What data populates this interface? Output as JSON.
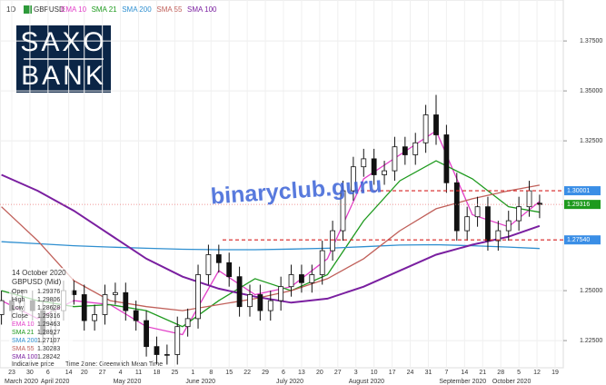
{
  "logo": [
    "SAXO",
    "BANK"
  ],
  "watermark": "binaryclub.guru",
  "header": {
    "interval": "1D",
    "symbol": "GBPUSD"
  },
  "footer": [
    "Indicative price",
    "Time Zone: Greenwich Mean Time"
  ],
  "chart_data": {
    "type": "candlestick",
    "candles": {
      "x": [
        "2020-03-19",
        "2020-03-23",
        "2020-03-27",
        "2020-03-31",
        "2020-04-04",
        "2020-04-08",
        "2020-04-12",
        "2020-04-16",
        "2020-04-20",
        "2020-04-24",
        "2020-04-28",
        "2020-05-02",
        "2020-05-06",
        "2020-05-10",
        "2020-05-14",
        "2020-05-18",
        "2020-05-22",
        "2020-05-26",
        "2020-05-30",
        "2020-06-03",
        "2020-06-07",
        "2020-06-11",
        "2020-06-15",
        "2020-06-19",
        "2020-06-23",
        "2020-06-27",
        "2020-07-01",
        "2020-07-05",
        "2020-07-09",
        "2020-07-13",
        "2020-07-17",
        "2020-07-21",
        "2020-07-25",
        "2020-07-29",
        "2020-08-02",
        "2020-08-06",
        "2020-08-10",
        "2020-08-14",
        "2020-08-18",
        "2020-08-22",
        "2020-08-26",
        "2020-08-30",
        "2020-09-03",
        "2020-09-07",
        "2020-09-11",
        "2020-09-15",
        "2020-09-19",
        "2020-09-23",
        "2020-09-27",
        "2020-10-01",
        "2020-10-05",
        "2020-10-09",
        "2020-10-13"
      ],
      "open": [
        1.238,
        1.245,
        1.24,
        1.245,
        1.24,
        1.228,
        1.24,
        1.25,
        1.248,
        1.235,
        1.238,
        1.248,
        1.249,
        1.24,
        1.235,
        1.222,
        1.218,
        1.218,
        1.232,
        1.236,
        1.258,
        1.268,
        1.264,
        1.257,
        1.242,
        1.248,
        1.24,
        1.245,
        1.252,
        1.258,
        1.254,
        1.258,
        1.27,
        1.28,
        1.3,
        1.312,
        1.316,
        1.308,
        1.31,
        1.322,
        1.318,
        1.324,
        1.338,
        1.328,
        1.304,
        1.28,
        1.287,
        1.292,
        1.275,
        1.28,
        1.285,
        1.292,
        1.29376
      ],
      "high": [
        1.25,
        1.25,
        1.25,
        1.25,
        1.245,
        1.245,
        1.255,
        1.255,
        1.253,
        1.243,
        1.253,
        1.254,
        1.254,
        1.245,
        1.24,
        1.227,
        1.223,
        1.237,
        1.241,
        1.263,
        1.273,
        1.273,
        1.269,
        1.262,
        1.253,
        1.253,
        1.25,
        1.257,
        1.263,
        1.263,
        1.263,
        1.275,
        1.285,
        1.305,
        1.317,
        1.321,
        1.321,
        1.315,
        1.327,
        1.327,
        1.329,
        1.343,
        1.348,
        1.333,
        1.309,
        1.292,
        1.297,
        1.297,
        1.285,
        1.29,
        1.297,
        1.305,
        1.29806
      ],
      "low": [
        1.233,
        1.235,
        1.235,
        1.235,
        1.223,
        1.223,
        1.235,
        1.243,
        1.23,
        1.23,
        1.233,
        1.243,
        1.235,
        1.23,
        1.217,
        1.213,
        1.213,
        1.213,
        1.227,
        1.231,
        1.253,
        1.259,
        1.252,
        1.237,
        1.237,
        1.235,
        1.235,
        1.24,
        1.247,
        1.249,
        1.249,
        1.253,
        1.265,
        1.275,
        1.295,
        1.307,
        1.303,
        1.303,
        1.305,
        1.313,
        1.313,
        1.319,
        1.323,
        1.299,
        1.275,
        1.275,
        1.282,
        1.27,
        1.27,
        1.275,
        1.28,
        1.287,
        1.28628
      ],
      "close": [
        1.245,
        1.24,
        1.245,
        1.24,
        1.228,
        1.24,
        1.25,
        1.248,
        1.235,
        1.238,
        1.248,
        1.249,
        1.24,
        1.235,
        1.222,
        1.218,
        1.218,
        1.232,
        1.236,
        1.258,
        1.268,
        1.264,
        1.257,
        1.242,
        1.248,
        1.24,
        1.245,
        1.252,
        1.258,
        1.254,
        1.258,
        1.27,
        1.28,
        1.3,
        1.312,
        1.316,
        1.308,
        1.31,
        1.322,
        1.318,
        1.324,
        1.338,
        1.328,
        1.304,
        1.28,
        1.287,
        1.292,
        1.275,
        1.28,
        1.285,
        1.292,
        1.3,
        1.29316
      ],
      "up_color": "#ffffff",
      "down_color": "#111111",
      "outline": "#111111"
    },
    "ma_x": [
      "2020-03-19",
      "2020-04-02",
      "2020-04-16",
      "2020-04-30",
      "2020-05-14",
      "2020-05-28",
      "2020-06-11",
      "2020-06-25",
      "2020-07-09",
      "2020-07-23",
      "2020-08-06",
      "2020-08-20",
      "2020-09-03",
      "2020-09-17",
      "2020-10-01",
      "2020-10-13"
    ],
    "series": [
      {
        "name": "EMA 10",
        "color": "#e23fc8",
        "values": [
          1.245,
          1.236,
          1.245,
          1.243,
          1.232,
          1.228,
          1.26,
          1.248,
          1.252,
          1.266,
          1.306,
          1.318,
          1.33,
          1.288,
          1.282,
          1.29463
        ]
      },
      {
        "name": "SMA 21",
        "color": "#1e9a1e",
        "values": [
          1.25,
          1.245,
          1.242,
          1.243,
          1.24,
          1.232,
          1.245,
          1.256,
          1.25,
          1.258,
          1.285,
          1.305,
          1.315,
          1.306,
          1.292,
          1.28927
        ]
      },
      {
        "name": "SMA 200",
        "color": "#2f8fd0",
        "values": [
          1.2745,
          1.2735,
          1.2725,
          1.2718,
          1.2712,
          1.2707,
          1.2705,
          1.2705,
          1.2708,
          1.2712,
          1.272,
          1.2728,
          1.273,
          1.2725,
          1.2718,
          1.27107
        ]
      },
      {
        "name": "SMA 55",
        "color": "#c0605a",
        "values": [
          1.292,
          1.275,
          1.255,
          1.245,
          1.242,
          1.24,
          1.243,
          1.246,
          1.25,
          1.256,
          1.266,
          1.28,
          1.291,
          1.296,
          1.3,
          1.30283
        ]
      },
      {
        "name": "SMA 100",
        "color": "#7a1fa0",
        "values": [
          1.308,
          1.3,
          1.29,
          1.278,
          1.266,
          1.257,
          1.251,
          1.247,
          1.244,
          1.246,
          1.252,
          1.26,
          1.268,
          1.273,
          1.277,
          1.28242
        ]
      }
    ],
    "levels": [
      {
        "value": 1.30001,
        "color": "#d62020"
      },
      {
        "value": 1.2754,
        "label": "1.27540",
        "color": "#d62020"
      }
    ],
    "last_price_color": "#1e9a1e",
    "ylim": [
      1.2114,
      1.3955
    ],
    "yticks": [
      {
        "value": 1.225,
        "label": "1.22500"
      },
      {
        "value": 1.25,
        "label": "1.25000"
      },
      {
        "value": 1.325,
        "label": "1.32500"
      },
      {
        "value": 1.35,
        "label": "1.35000"
      },
      {
        "value": 1.375,
        "label": "1.37500"
      }
    ],
    "xticks": [
      {
        "value": "2020-03-23",
        "label": "23"
      },
      {
        "value": "2020-03-30",
        "label": "30"
      },
      {
        "value": "2020-04-06",
        "label": "6"
      },
      {
        "value": "2020-04-14",
        "label": "14"
      },
      {
        "value": "2020-04-20",
        "label": "20"
      },
      {
        "value": "2020-04-27",
        "label": "27"
      },
      {
        "value": "2020-05-04",
        "label": "4"
      },
      {
        "value": "2020-05-11",
        "label": "11"
      },
      {
        "value": "2020-05-18",
        "label": "18"
      },
      {
        "value": "2020-05-25",
        "label": "25"
      },
      {
        "value": "2020-06-01",
        "label": "1"
      },
      {
        "value": "2020-06-08",
        "label": "8"
      },
      {
        "value": "2020-06-15",
        "label": "15"
      },
      {
        "value": "2020-06-22",
        "label": "22"
      },
      {
        "value": "2020-06-29",
        "label": "29"
      },
      {
        "value": "2020-07-06",
        "label": "6"
      },
      {
        "value": "2020-07-13",
        "label": "13"
      },
      {
        "value": "2020-07-20",
        "label": "20"
      },
      {
        "value": "2020-07-27",
        "label": "27"
      },
      {
        "value": "2020-08-03",
        "label": "3"
      },
      {
        "value": "2020-08-10",
        "label": "10"
      },
      {
        "value": "2020-08-17",
        "label": "17"
      },
      {
        "value": "2020-08-24",
        "label": "24"
      },
      {
        "value": "2020-08-31",
        "label": "31"
      },
      {
        "value": "2020-09-07",
        "label": "7"
      },
      {
        "value": "2020-09-14",
        "label": "14"
      },
      {
        "value": "2020-09-21",
        "label": "21"
      },
      {
        "value": "2020-09-28",
        "label": "28"
      },
      {
        "value": "2020-10-05",
        "label": "5"
      },
      {
        "value": "2020-10-12",
        "label": "12"
      },
      {
        "value": "2020-10-19",
        "label": "19"
      }
    ],
    "month_labels": [
      "March 2020",
      "April 2020",
      "May 2020",
      "June 2020",
      "July 2020",
      "August 2020",
      "September 2020",
      "October 2020"
    ],
    "grid": true,
    "readout": {
      "date": "14 October 2020",
      "symbol": "GBPUSD (Mid)",
      "labels": [
        "Open",
        "High",
        "Low",
        "Close"
      ]
    }
  }
}
